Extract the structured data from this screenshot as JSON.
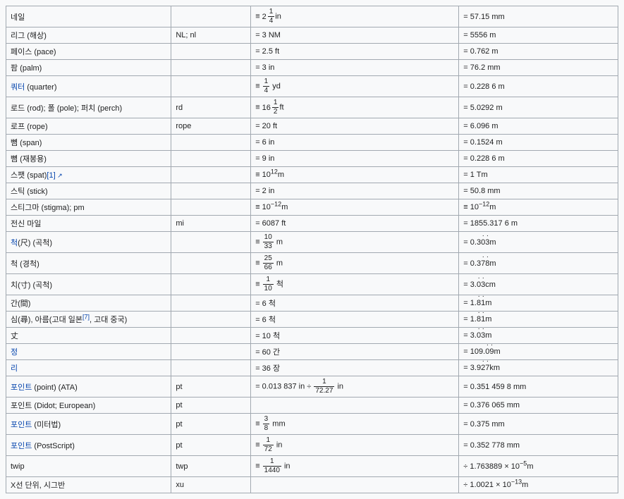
{
  "table": {
    "columns": [
      "name",
      "symbol",
      "definition",
      "si"
    ],
    "col_widths_pct": [
      27,
      13,
      34,
      26
    ],
    "border_color": "#a2a9b1",
    "background_color": "#f8f9fa",
    "text_color": "#202122",
    "link_color": "#0645ad",
    "font_size_pt": 8.5,
    "rows": [
      {
        "name_plain": "네일",
        "symbol": "",
        "def_html": "≡ <span class='mix'>2<span class='frac'><span class='n'>1</span><span class='d'>4</span></span></span>in",
        "def_plain": "≡ 2 1/4 in",
        "si": "= 57.15 mm",
        "tall": true
      },
      {
        "name_plain": "리그 (해상)",
        "symbol": "NL; nl",
        "def_plain": "= 3 NM",
        "si": "= 5556 m"
      },
      {
        "name_plain": "페이스 (pace)",
        "symbol": "",
        "def_plain": "= 2.5 ft",
        "si": "= 0.762 m"
      },
      {
        "name_plain": "팜 (palm)",
        "symbol": "",
        "def_plain": "= 3 in",
        "si": "= 76.2 mm"
      },
      {
        "name_html": "<a data-name='link-quarter' data-interactable='true'>쿼터</a> (quarter)",
        "name_plain": "쿼터 (quarter)",
        "symbol": "",
        "def_html": "≡ <span class='frac'><span class='n'>1</span><span class='d'>4</span></span> yd",
        "def_plain": "≡ 1/4 yd",
        "si": "= 0.228 6 m",
        "tall": true
      },
      {
        "name_plain": "로드 (rod); 폴 (pole); 퍼치 (perch)",
        "symbol": "rd",
        "def_html": "≡ <span class='mix'>16<span class='frac'><span class='n'>1</span><span class='d'>2</span></span></span>ft",
        "def_plain": "≡ 16 1/2 ft",
        "si": "= 5.0292 m",
        "tall": true
      },
      {
        "name_plain": "로프 (rope)",
        "symbol": "rope",
        "def_plain": "= 20 ft",
        "si": "= 6.096 m"
      },
      {
        "name_plain": "뼘 (span)",
        "symbol": "",
        "def_plain": "= 6 in",
        "si": "= 0.1524 m"
      },
      {
        "name_plain": "뼘 (재봉용)",
        "symbol": "",
        "def_plain": "= 9 in",
        "si": "= 0.228 6 m"
      },
      {
        "name_html": "스팻 (spat)<a data-name='ref-1' data-interactable='true'>[1]</a><span class='ext' data-name='ext-icon' data-interactable='false'></span>",
        "name_plain": "스팻 (spat)[1]",
        "symbol": "",
        "def_html": "≡ 10<sup>12</sup>m",
        "def_plain": "≡ 10^12 m",
        "si": "= 1 Tm"
      },
      {
        "name_plain": "스틱 (stick)",
        "symbol": "",
        "def_plain": "= 2 in",
        "si": "= 50.8 mm"
      },
      {
        "name_plain": "스티그마 (stigma); pm",
        "symbol": "",
        "def_html": "≡ 10<sup>−12</sup>m",
        "def_plain": "≡ 10^-12 m",
        "si_html": "≡ 10<sup>−12</sup>m",
        "si": "≡ 10^-12 m"
      },
      {
        "name_plain": "전신 마일",
        "symbol": "mi",
        "def_plain": "= 6087 ft",
        "si": "= 1855.317 6 m"
      },
      {
        "name_html": "<a data-name='link-cheok' data-interactable='true'>척</a>(尺) (곡척)",
        "name_plain": "척(尺) (곡척)",
        "symbol": "",
        "def_html": "≡ <span class='frac'><span class='n'>10</span><span class='d'>33</span></span> m",
        "def_plain": "≡ 10/33 m",
        "si_html": "= 0.3<span class='dot'>0</span><span class='dot'>3</span>m",
        "si": "= 0.303 m (repeating)",
        "tall": true
      },
      {
        "name_plain": "척 (경척)",
        "symbol": "",
        "def_html": "≡ <span class='frac'><span class='n'>25</span><span class='d'>66</span></span> m",
        "def_plain": "≡ 25/66 m",
        "si_html": "= 0.3<span class='dot'>7</span><span class='dot'>8</span>m",
        "si": "= 0.378 m (repeating)",
        "tall": true
      },
      {
        "name_plain": "치(寸) (곡척)",
        "symbol": "",
        "def_html": "≡ <span class='frac'><span class='n'>1</span><span class='d'>10</span></span> 척",
        "def_plain": "≡ 1/10 척",
        "si_html": "= 3.<span class='dot'>0</span><span class='dot'>3</span>cm",
        "si": "= 3.03 cm (repeating)",
        "tall": true
      },
      {
        "name_plain": "간(間)",
        "symbol": "",
        "def_plain": "= 6 척",
        "si_html": "= 1.<span class='dot'>8</span><span class='dot'>1</span>m",
        "si": "= 1.81 m (repeating)"
      },
      {
        "name_html": "심(尋), 아름(고대 일본<a data-name='ref-7' data-interactable='true'><sup>[7]</sup></a>, 고대 중국)",
        "name_plain": "심(尋), 아름(고대 일본[7], 고대 중국)",
        "symbol": "",
        "def_plain": "= 6 척",
        "si_html": "= 1.<span class='dot'>8</span><span class='dot'>1</span>m",
        "si": "= 1.81 m (repeating)"
      },
      {
        "name_plain": "丈",
        "symbol": "",
        "def_plain": "= 10 척",
        "si_html": "= 3.<span class='dot'>0</span><span class='dot'>3</span>m",
        "si": "= 3.03 m (repeating)"
      },
      {
        "name_html": "<a data-name='link-jeong' data-interactable='true'>정</a>",
        "name_plain": "정",
        "symbol": "",
        "def_plain": "= 60 간",
        "si_html": "= 109.<span class='dot'>0</span><span class='dot'>9</span>m",
        "si": "= 109.09 m (repeating)"
      },
      {
        "name_html": "<a data-name='link-ri' data-interactable='true'>리</a>",
        "name_plain": "리",
        "symbol": "",
        "def_plain": "= 36 장",
        "si_html": "= 3.9<span class='dot'>2</span><span class='dot'>7</span>km",
        "si": "= 3.927 km (repeating)"
      },
      {
        "name_html": "<a data-name='link-point-ata' data-interactable='true'>포인트</a> (point) (ATA)",
        "name_plain": "포인트 (point) (ATA)",
        "symbol": "pt",
        "def_html": "= 0.013 837 in ÷ <span class='frac'><span class='n'>1</span><span class='d'>72.27</span></span> in",
        "def_plain": "= 0.013 837 in ÷ 1/72.27 in",
        "si": "= 0.351 459 8 mm",
        "tall": true
      },
      {
        "name_plain": "포인트 (Didot; European)",
        "symbol": "pt",
        "def_plain": "",
        "si": "= 0.376 065 mm"
      },
      {
        "name_html": "<a data-name='link-point-metric' data-interactable='true'>포인트</a> (미터법)",
        "name_plain": "포인트 (미터법)",
        "symbol": "pt",
        "def_html": "≡ <span class='frac'><span class='n'>3</span><span class='d'>8</span></span> mm",
        "def_plain": "≡ 3/8 mm",
        "si": "= 0.375 mm",
        "tall": true
      },
      {
        "name_html": "<a data-name='link-point-ps' data-interactable='true'>포인트</a> (PostScript)",
        "name_plain": "포인트 (PostScript)",
        "symbol": "pt",
        "def_html": "≡ <span class='frac'><span class='n'>1</span><span class='d'>72</span></span> in",
        "def_plain": "≡ 1/72 in",
        "si": "= 0.352 778 mm",
        "tall": true
      },
      {
        "name_plain": "twip",
        "symbol": "twp",
        "def_html": "≡ <span class='frac'><span class='n'>1</span><span class='d'>1440</span></span> in",
        "def_plain": "≡ 1/1440 in",
        "si_html": "÷ 1.763889 × 10<sup>−5</sup>m",
        "si": "÷ 1.763889 × 10^-5 m",
        "tall": true
      },
      {
        "name_plain": "X선 단위, 시그반",
        "symbol": "xu",
        "def_plain": "",
        "si_html": "÷ 1.0021 × 10<sup>−13</sup>m",
        "si": "÷ 1.0021 × 10^-13 m"
      }
    ]
  }
}
